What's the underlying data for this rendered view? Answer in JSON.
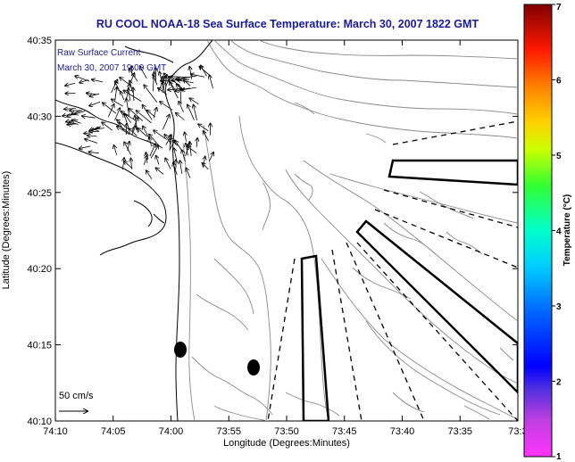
{
  "title": "RU COOL  NOAA-18  Sea Surface Temperature:  March 30, 2007 1822 GMT",
  "legend": {
    "line1": "Raw Surface Current",
    "line2": "March 30, 2007 19:00 GMT"
  },
  "scale": {
    "label": "50 cm/s"
  },
  "axes": {
    "xlabel": "Longitude (Degrees:Minutes)",
    "ylabel": "Latitude (Degrees:Minutes)",
    "xticks": [
      "74:10",
      "74:05",
      "74:00",
      "73:55",
      "73:50",
      "73:45",
      "73:40",
      "73:35",
      "73:3"
    ],
    "yticks": [
      "40:35",
      "40:30",
      "40:25",
      "40:20",
      "40:15",
      "40:10"
    ]
  },
  "colorbar": {
    "label": "Temperature (°C)",
    "ticks": [
      "7",
      "6",
      "5",
      "4",
      "3",
      "2",
      "1"
    ],
    "min": 1,
    "max": 7
  },
  "colors": {
    "title": "#1a1aa0",
    "coast": "#000000",
    "contours": "#888888"
  }
}
